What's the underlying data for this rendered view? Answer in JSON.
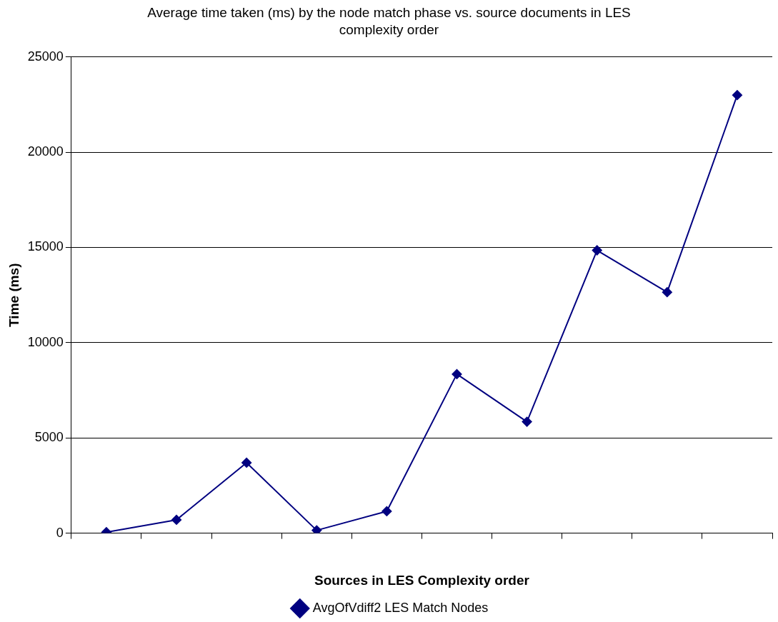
{
  "chart_data": {
    "type": "line",
    "title": "Average time taken (ms) by the node match phase vs. source documents in LES complexity order",
    "xlabel": "Sources in LES Complexity order",
    "ylabel": "Time (ms)",
    "categories": [
      null,
      null,
      null,
      null,
      null,
      null,
      null,
      null,
      null,
      null
    ],
    "series": [
      {
        "name": "AvgOfVdiff2 LES Match Nodes",
        "color": "#000080",
        "values": [
          50,
          700,
          3700,
          150,
          1150,
          8350,
          5850,
          14850,
          12650,
          23000
        ]
      }
    ],
    "ylim": [
      0,
      25000
    ],
    "yticks": [
      0,
      5000,
      10000,
      15000,
      20000,
      25000
    ],
    "grid": "y",
    "legend": "bottom",
    "marker": "diamond",
    "line_style": "solid"
  }
}
